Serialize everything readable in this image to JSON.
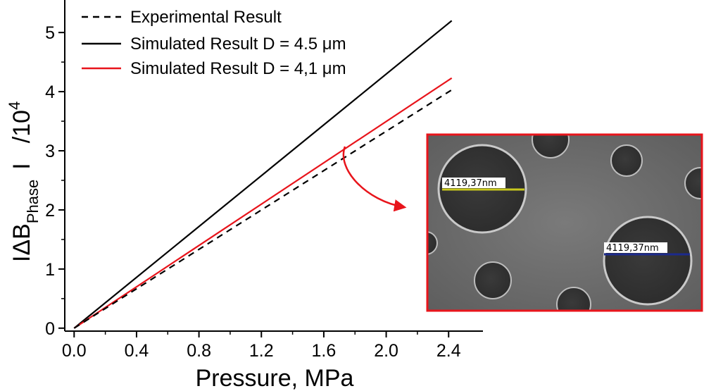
{
  "chart_data": {
    "type": "line",
    "title": "",
    "xlabel": "Pressure, MPa",
    "ylabel": {
      "prefix": "I",
      "delta": "Δ",
      "main": "B",
      "subscript": "Phase",
      "suffix": "I",
      "scale": "/10",
      "exponent": "4"
    },
    "xlim": [
      -0.06,
      2.62
    ],
    "ylim": [
      -0.05,
      5.55
    ],
    "xticks": [
      0.0,
      0.4,
      0.8,
      1.2,
      1.6,
      2.0,
      2.4
    ],
    "xtick_labels": [
      "0.0",
      "0.4",
      "0.8",
      "1.2",
      "1.6",
      "2.0",
      "2.4"
    ],
    "yticks": [
      0,
      1,
      2,
      3,
      4,
      5
    ],
    "ytick_labels": [
      "0",
      "1",
      "2",
      "3",
      "4",
      "5"
    ],
    "legend_position": "top-left",
    "series": [
      {
        "name": "Experimental Result",
        "color": "#000000",
        "dash": "dashed",
        "x": [
          0.0,
          2.42
        ],
        "y": [
          0.0,
          4.03
        ]
      },
      {
        "name": "Simulated Result D = 4.5 μm",
        "color": "#000000",
        "dash": "solid",
        "x": [
          0.0,
          2.42
        ],
        "y": [
          0.0,
          5.2
        ]
      },
      {
        "name": "Simulated Result D = 4,1 μm",
        "color": "#e8141b",
        "dash": "solid",
        "x": [
          0.0,
          2.42
        ],
        "y": [
          0.0,
          4.23
        ]
      }
    ],
    "annotation": {
      "type": "arrow",
      "color": "#e8141b",
      "from": [
        1.72,
        3.05
      ],
      "points_to": "inset-image"
    }
  },
  "inset": {
    "description_icon": "sem-micrograph-icon",
    "border_color": "#e8141b",
    "measurements": [
      {
        "label": "4119,37nm",
        "color": "#c8c81e"
      },
      {
        "label": "4119,37nm",
        "color": "#1c2a8c"
      }
    ]
  }
}
